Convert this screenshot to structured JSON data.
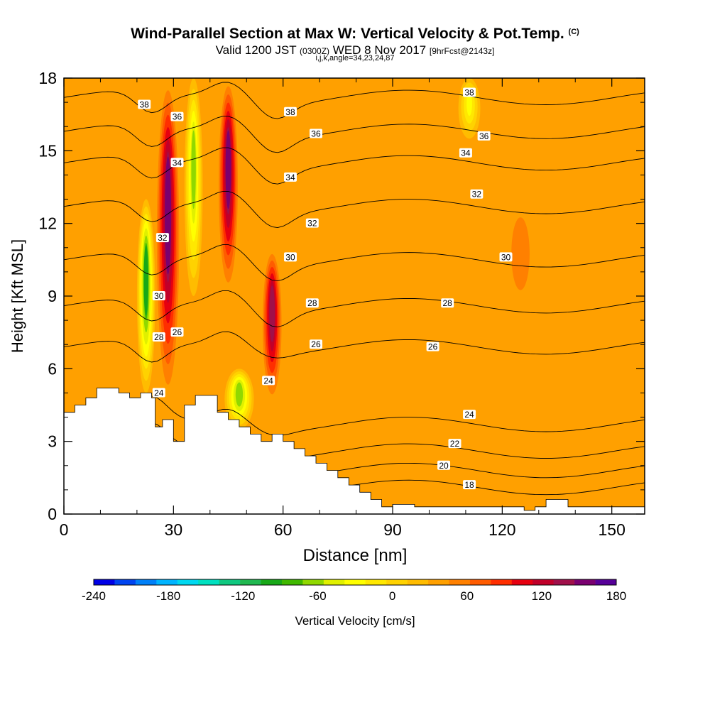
{
  "header": {
    "title": "Wind-Parallel Section at Max W: Vertical Velocity & Pot.Temp.",
    "copyright": "(C)",
    "valid_main": "Valid 1200 JST",
    "valid_utc": "(0300Z)",
    "valid_date": "WED 8 Nov 2017",
    "forecast": "[9hrFcst@2143z]",
    "indices": "i,j,k,angle=34,23,24,87"
  },
  "chart_data": {
    "type": "heatmap",
    "xlabel": "Distance [nm]",
    "ylabel": "Height [Kft MSL]",
    "xlim": [
      0,
      159
    ],
    "ylim": [
      0,
      18
    ],
    "x_ticks": [
      0,
      30,
      60,
      90,
      120,
      150
    ],
    "y_ticks": [
      0,
      3,
      6,
      9,
      12,
      15,
      18
    ],
    "x_tick_labels": [
      "0",
      "30",
      "60",
      "90",
      "120",
      "150"
    ],
    "y_tick_labels": [
      "0",
      "3",
      "6",
      "9",
      "12",
      "15",
      "18"
    ],
    "background_value_cms": 0,
    "vertical_velocity_features": [
      {
        "kind": "updraft",
        "x": [
          25,
          32
        ],
        "y": [
          4.5,
          18
        ],
        "peak_cms": 120
      },
      {
        "kind": "downdraft",
        "x": [
          20,
          25
        ],
        "y": [
          5,
          13
        ],
        "peak_cms": -120
      },
      {
        "kind": "downdraft",
        "x": [
          33,
          38
        ],
        "y": [
          9,
          18
        ],
        "peak_cms": -90
      },
      {
        "kind": "updraft",
        "x": [
          42,
          48
        ],
        "y": [
          9,
          18
        ],
        "peak_cms": 120
      },
      {
        "kind": "updraft",
        "x": [
          54,
          60
        ],
        "y": [
          4.5,
          11
        ],
        "peak_cms": 110
      },
      {
        "kind": "downdraft",
        "x": [
          44,
          52
        ],
        "y": [
          3.5,
          6
        ],
        "peak_cms": -100
      },
      {
        "kind": "downdraft",
        "x": [
          108,
          114
        ],
        "y": [
          15.5,
          18
        ],
        "peak_cms": -60
      },
      {
        "kind": "updraft",
        "x": [
          120,
          130
        ],
        "y": [
          8,
          13
        ],
        "peak_cms": 30
      }
    ],
    "theta_contours_celsius": [
      18,
      20,
      22,
      24,
      26,
      28,
      30,
      32,
      34,
      36,
      38
    ],
    "contour_labels": [
      {
        "text": "38",
        "x": 22,
        "y": 16.9
      },
      {
        "text": "36",
        "x": 31,
        "y": 16.4
      },
      {
        "text": "34",
        "x": 31,
        "y": 14.5
      },
      {
        "text": "32",
        "x": 27,
        "y": 11.4
      },
      {
        "text": "30",
        "x": 26,
        "y": 9.0
      },
      {
        "text": "28",
        "x": 26,
        "y": 7.3
      },
      {
        "text": "26",
        "x": 31,
        "y": 7.5
      },
      {
        "text": "24",
        "x": 26,
        "y": 5.0
      },
      {
        "text": "38",
        "x": 62,
        "y": 16.6
      },
      {
        "text": "36",
        "x": 69,
        "y": 15.7
      },
      {
        "text": "34",
        "x": 62,
        "y": 13.9
      },
      {
        "text": "32",
        "x": 68,
        "y": 12.0
      },
      {
        "text": "30",
        "x": 62,
        "y": 10.6
      },
      {
        "text": "28",
        "x": 68,
        "y": 8.7
      },
      {
        "text": "26",
        "x": 69,
        "y": 7.0
      },
      {
        "text": "24",
        "x": 56,
        "y": 5.5
      },
      {
        "text": "38",
        "x": 111,
        "y": 17.4
      },
      {
        "text": "36",
        "x": 115,
        "y": 15.6
      },
      {
        "text": "34",
        "x": 110,
        "y": 14.9
      },
      {
        "text": "32",
        "x": 113,
        "y": 13.2
      },
      {
        "text": "30",
        "x": 121,
        "y": 10.6
      },
      {
        "text": "28",
        "x": 105,
        "y": 8.7
      },
      {
        "text": "26",
        "x": 101,
        "y": 6.9
      },
      {
        "text": "24",
        "x": 111,
        "y": 4.1
      },
      {
        "text": "22",
        "x": 107,
        "y": 2.9
      },
      {
        "text": "20",
        "x": 104,
        "y": 2.0
      },
      {
        "text": "18",
        "x": 111,
        "y": 1.2
      }
    ],
    "terrain": {
      "x": [
        0,
        3,
        3,
        6,
        6,
        9,
        9,
        15,
        15,
        18,
        18,
        21,
        21,
        24,
        24,
        25,
        25,
        27,
        27,
        30,
        30,
        33,
        33,
        36,
        36,
        42,
        42,
        45,
        45,
        48,
        48,
        51,
        51,
        54,
        54,
        57,
        57,
        60,
        60,
        63,
        63,
        66,
        66,
        69,
        69,
        72,
        72,
        75,
        75,
        78,
        78,
        81,
        81,
        84,
        84,
        87,
        87,
        90,
        90,
        96,
        96,
        126,
        126,
        129,
        129,
        132,
        132,
        138,
        138,
        159
      ],
      "y": [
        4.2,
        4.2,
        4.5,
        4.5,
        4.8,
        4.8,
        5.2,
        5.2,
        5.0,
        5.0,
        4.8,
        4.8,
        5.0,
        5.0,
        4.8,
        4.8,
        3.6,
        3.6,
        3.9,
        3.9,
        3.0,
        3.0,
        4.5,
        4.5,
        4.9,
        4.9,
        4.2,
        4.2,
        3.9,
        3.9,
        3.6,
        3.6,
        3.3,
        3.3,
        3.0,
        3.0,
        3.3,
        3.3,
        3.0,
        3.0,
        2.7,
        2.7,
        2.4,
        2.4,
        2.1,
        2.1,
        1.8,
        1.8,
        1.5,
        1.5,
        1.2,
        1.2,
        0.9,
        0.9,
        0.6,
        0.6,
        0.3,
        0.3,
        0.4,
        0.4,
        0.3,
        0.3,
        0.15,
        0.15,
        0.3,
        0.3,
        0.6,
        0.6,
        0.3,
        0.3
      ]
    },
    "colorbar": {
      "label": "Vertical Velocity [cm/s]",
      "min": -240,
      "max": 180,
      "step": 15,
      "tick_values": [
        -240,
        -180,
        -120,
        -60,
        0,
        60,
        120,
        180
      ],
      "tick_labels": [
        "-240",
        "-180",
        "-120",
        "-60",
        "0",
        "60",
        "120",
        "180"
      ],
      "colors": [
        "#0000e6",
        "#0044f0",
        "#0080f8",
        "#00b4ff",
        "#00d8f0",
        "#00e0c0",
        "#10c880",
        "#20b850",
        "#18a818",
        "#40b800",
        "#90d800",
        "#e0f000",
        "#ffff00",
        "#ffe800",
        "#ffd200",
        "#ffbc00",
        "#ffa000",
        "#ff8000",
        "#ff5c00",
        "#ff2e00",
        "#e60010",
        "#c0002a",
        "#a0104a",
        "#7a0070",
        "#560098"
      ]
    }
  }
}
